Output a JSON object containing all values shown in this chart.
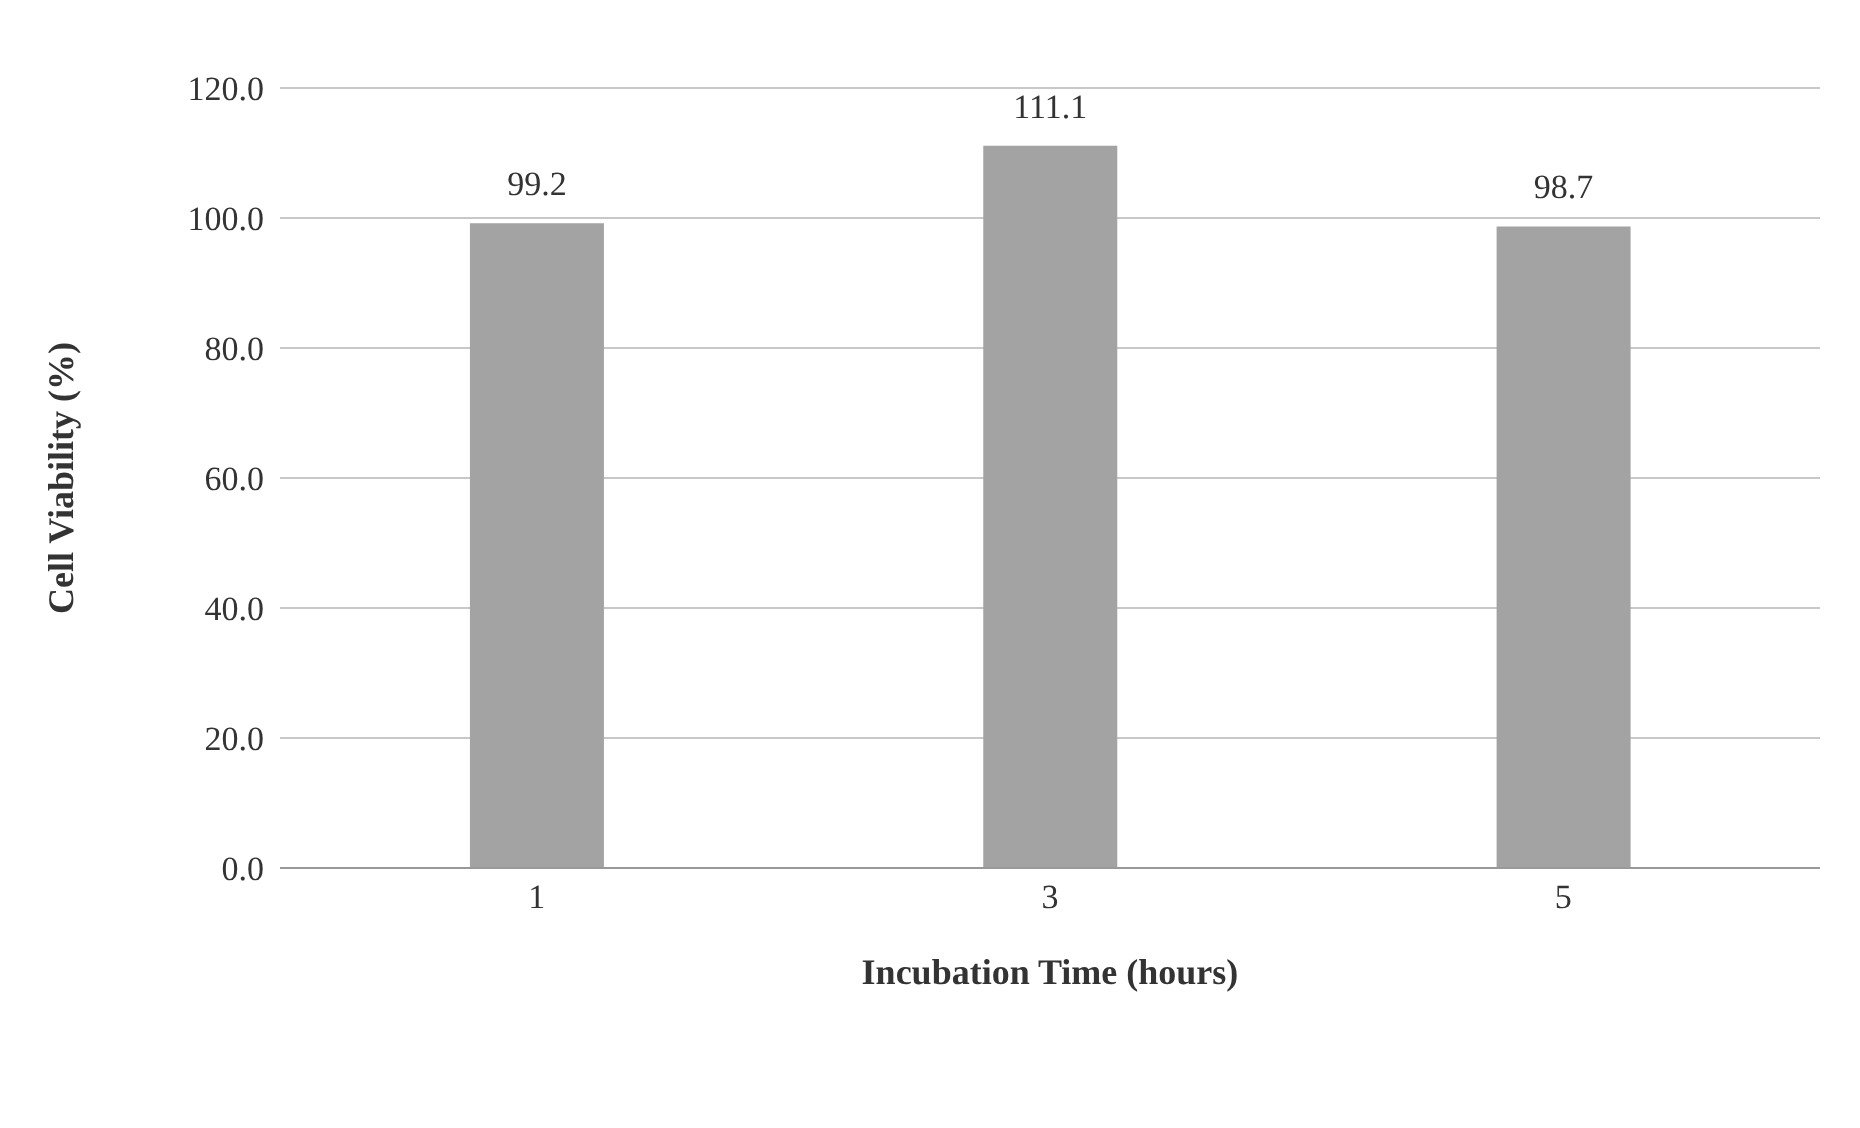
{
  "chart_data": {
    "type": "bar",
    "xlabel": "Incubation Time (hours)",
    "ylabel": "Cell Viability (%)",
    "categories": [
      "1",
      "3",
      "5"
    ],
    "values": [
      99.2,
      111.1,
      98.7
    ],
    "color": "#a3a3a3",
    "ylim": [
      0,
      120
    ],
    "yticks": [
      {
        "value": 0,
        "label": "0.0"
      },
      {
        "value": 20,
        "label": "20.0"
      },
      {
        "value": 40,
        "label": "40.0"
      },
      {
        "value": 60,
        "label": "60.0"
      },
      {
        "value": 80,
        "label": "80.0"
      },
      {
        "value": 100,
        "label": "100.0"
      },
      {
        "value": 120,
        "label": "120.0"
      }
    ],
    "grid": "y",
    "data_labels": true,
    "legend": false
  }
}
